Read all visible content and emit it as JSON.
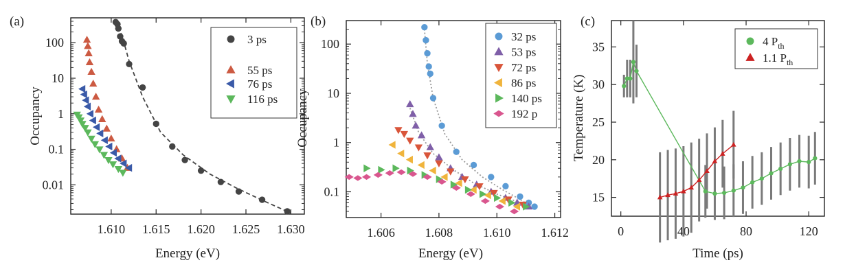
{
  "chart_data": [
    {
      "panel_label": "(a)",
      "type": "scatter",
      "xlabel": "Energy (eV)",
      "ylabel": "Occupancy",
      "xlim": [
        1.6055,
        1.6315
      ],
      "ylim": [
        0.0015,
        500
      ],
      "yscale": "log",
      "x_ticks": [
        1.61,
        1.615,
        1.62,
        1.625,
        1.63
      ],
      "x_tick_labels": [
        "1.610",
        "1.615",
        "1.620",
        "1.625",
        "1.630"
      ],
      "y_ticks": [
        0.01,
        0.1,
        1,
        10,
        100
      ],
      "y_tick_labels": [
        "0.01",
        "0.1",
        "1",
        "10",
        "100"
      ],
      "legend_position": "top-right",
      "series": [
        {
          "name": "3 ps",
          "marker": "circle",
          "color": "#444444",
          "x": [
            1.6105,
            1.6107,
            1.6108,
            1.611,
            1.6112,
            1.6114,
            1.612,
            1.6135,
            1.615,
            1.6168,
            1.6182,
            1.62,
            1.6222,
            1.6242,
            1.6268,
            1.6296
          ],
          "y": [
            380,
            330,
            250,
            150,
            110,
            95,
            25,
            5.5,
            0.52,
            0.12,
            0.05,
            0.025,
            0.012,
            0.0065,
            0.0038,
            0.0018
          ]
        },
        {
          "name": "55 ps",
          "marker": "triangle-up",
          "color": "#cc5a42",
          "x": [
            1.6073,
            1.6074,
            1.6075,
            1.6076,
            1.6078,
            1.608,
            1.6083,
            1.6086,
            1.609,
            1.6095,
            1.61,
            1.6106,
            1.6112,
            1.6118
          ],
          "y": [
            120,
            80,
            50,
            28,
            15,
            7,
            3,
            1.3,
            0.7,
            0.38,
            0.2,
            0.1,
            0.055,
            0.03
          ]
        },
        {
          "name": "76 ps",
          "marker": "triangle-left",
          "color": "#3a5aa8",
          "x": [
            1.6068,
            1.607,
            1.6072,
            1.6074,
            1.6077,
            1.608,
            1.6084,
            1.6088,
            1.6093,
            1.6098,
            1.6103,
            1.6108,
            1.6114,
            1.612
          ],
          "y": [
            5,
            3.5,
            2.4,
            1.6,
            1.0,
            0.65,
            0.42,
            0.28,
            0.18,
            0.12,
            0.08,
            0.055,
            0.04,
            0.03
          ]
        },
        {
          "name": "116 ps",
          "marker": "triangle-down",
          "color": "#5cb85c",
          "x": [
            1.6062,
            1.6064,
            1.6066,
            1.6068,
            1.6071,
            1.6074,
            1.6078,
            1.6082,
            1.6087,
            1.6092,
            1.6097,
            1.6102,
            1.6108,
            1.6113
          ],
          "y": [
            0.95,
            0.8,
            0.65,
            0.52,
            0.4,
            0.3,
            0.2,
            0.14,
            0.1,
            0.07,
            0.05,
            0.038,
            0.028,
            0.022
          ]
        }
      ],
      "fit_line": {
        "style": "dashed",
        "color": "#444444",
        "x": [
          1.6103,
          1.6107,
          1.6112,
          1.612,
          1.6135,
          1.6155,
          1.618,
          1.621,
          1.624,
          1.627,
          1.63
        ],
        "y": [
          400,
          300,
          160,
          30,
          3,
          0.3,
          0.07,
          0.02,
          0.008,
          0.0035,
          0.0016
        ]
      }
    },
    {
      "panel_label": "(b)",
      "type": "scatter",
      "xlabel": "Energy (eV)",
      "ylabel": "Occupancy",
      "xlim": [
        1.6048,
        1.6122
      ],
      "ylim": [
        0.03,
        300
      ],
      "yscale": "log",
      "x_ticks": [
        1.606,
        1.608,
        1.61,
        1.612
      ],
      "x_tick_labels": [
        "1.606",
        "1.608",
        "1.610",
        "1.612"
      ],
      "y_ticks": [
        0.1,
        1,
        10,
        100
      ],
      "y_tick_labels": [
        "0.1",
        "1",
        "10",
        "100"
      ],
      "legend_position": "top-right",
      "series": [
        {
          "name": "32 ps",
          "marker": "circle",
          "color": "#5b9bd5",
          "x": [
            1.6075,
            1.60755,
            1.6076,
            1.60765,
            1.6077,
            1.6078,
            1.6081,
            1.6086,
            1.6092,
            1.6098,
            1.6103,
            1.6108,
            1.6111,
            1.6113
          ],
          "y": [
            220,
            120,
            65,
            35,
            25,
            8,
            2.2,
            0.65,
            0.35,
            0.2,
            0.13,
            0.08,
            0.06,
            0.05
          ]
        },
        {
          "name": "53 ps",
          "marker": "triangle-up",
          "color": "#7f5fa8",
          "x": [
            1.607,
            1.6071,
            1.6072,
            1.6074,
            1.6077,
            1.608,
            1.6084,
            1.6088,
            1.6093,
            1.6098,
            1.6103,
            1.6107,
            1.6111
          ],
          "y": [
            6,
            3.8,
            2.2,
            1.4,
            0.8,
            0.5,
            0.3,
            0.2,
            0.14,
            0.1,
            0.075,
            0.06,
            0.05
          ]
        },
        {
          "name": "72 ps",
          "marker": "triangle-down",
          "color": "#d9553a",
          "x": [
            1.6066,
            1.6068,
            1.607,
            1.6073,
            1.6076,
            1.608,
            1.6084,
            1.6089,
            1.6094,
            1.6099,
            1.6104,
            1.6109
          ],
          "y": [
            1.8,
            1.5,
            1.1,
            0.8,
            0.55,
            0.38,
            0.26,
            0.18,
            0.13,
            0.095,
            0.07,
            0.055
          ]
        },
        {
          "name": "86 ps",
          "marker": "triangle-left",
          "color": "#f0b43c",
          "x": [
            1.6064,
            1.6067,
            1.607,
            1.6074,
            1.6078,
            1.6082,
            1.6087,
            1.6092,
            1.6097,
            1.6102,
            1.6107
          ],
          "y": [
            0.9,
            0.6,
            0.45,
            0.35,
            0.27,
            0.2,
            0.15,
            0.11,
            0.085,
            0.065,
            0.05
          ]
        },
        {
          "name": "140 ps",
          "marker": "triangle-right",
          "color": "#5cb85c",
          "x": [
            1.6055,
            1.606,
            1.6065,
            1.607,
            1.6075,
            1.608,
            1.6085,
            1.609,
            1.6095,
            1.61,
            1.6105,
            1.611
          ],
          "y": [
            0.3,
            0.28,
            0.3,
            0.27,
            0.22,
            0.18,
            0.14,
            0.11,
            0.09,
            0.075,
            0.06,
            0.05
          ]
        },
        {
          "name": "192 p",
          "marker": "diamond",
          "color": "#d9568e",
          "x": [
            1.6049,
            1.6052,
            1.6055,
            1.6059,
            1.6063,
            1.6067,
            1.6071,
            1.6076,
            1.6081,
            1.6086,
            1.6091,
            1.6096,
            1.6101,
            1.6106
          ],
          "y": [
            0.2,
            0.19,
            0.2,
            0.22,
            0.24,
            0.25,
            0.23,
            0.2,
            0.16,
            0.12,
            0.09,
            0.065,
            0.05,
            0.04
          ]
        }
      ],
      "fit_lines": [
        {
          "style": "dotted",
          "color": "#999999",
          "x": [
            1.6075,
            1.6076,
            1.6078,
            1.6082,
            1.6088,
            1.6095,
            1.6102,
            1.6108,
            1.6112
          ],
          "y": [
            200,
            40,
            8,
            1.5,
            0.45,
            0.2,
            0.11,
            0.07,
            0.05
          ]
        },
        {
          "style": "dotted",
          "color": "#999999",
          "x": [
            1.607,
            1.6073,
            1.6078,
            1.6085,
            1.6092,
            1.61,
            1.6108
          ],
          "y": [
            5,
            1.6,
            0.6,
            0.28,
            0.15,
            0.09,
            0.06
          ]
        }
      ]
    },
    {
      "panel_label": "(c)",
      "type": "scatter",
      "xlabel": "Time (ps)",
      "ylabel": "Temperature (K)",
      "xlim": [
        -6,
        130
      ],
      "ylim": [
        12.5,
        38.5
      ],
      "x_ticks": [
        0,
        40,
        80,
        120
      ],
      "x_tick_labels": [
        "0",
        "40",
        "80",
        "120"
      ],
      "y_ticks": [
        15,
        20,
        25,
        30,
        35
      ],
      "y_tick_labels": [
        "15",
        "20",
        "25",
        "30",
        "35"
      ],
      "legend_position": "top-left",
      "series": [
        {
          "name": "4 P",
          "name_sub": "th",
          "marker": "circle",
          "color": "#5cb85c",
          "x": [
            2,
            4,
            6,
            8,
            10,
            54,
            60,
            66,
            72,
            78,
            84,
            90,
            96,
            102,
            108,
            114,
            120,
            124
          ],
          "y": [
            29.8,
            30.8,
            30.8,
            33,
            31.8,
            15.8,
            15.5,
            15.6,
            15.9,
            16.3,
            17,
            17.5,
            18.2,
            18.8,
            19.4,
            19.8,
            19.7,
            20.2
          ],
          "err": [
            1.5,
            2.5,
            2.5,
            5.5,
            3.5,
            3.5,
            3.5,
            3.5,
            3.5,
            3.5,
            3.5,
            3.5,
            3.5,
            3.5,
            3.5,
            3.5,
            3.5,
            3.5
          ]
        },
        {
          "name": "1.1 P",
          "name_sub": "th",
          "marker": "triangle-up",
          "color": "#cc2222",
          "x": [
            25,
            30,
            35,
            40,
            45,
            50,
            55,
            60,
            65,
            72
          ],
          "y": [
            15,
            15.3,
            15.5,
            15.8,
            16.3,
            17.3,
            18.5,
            19.8,
            20.8,
            22
          ],
          "err": [
            6,
            6,
            6,
            6,
            6,
            5.5,
            5,
            4.5,
            4.5,
            4.5
          ]
        }
      ]
    }
  ]
}
